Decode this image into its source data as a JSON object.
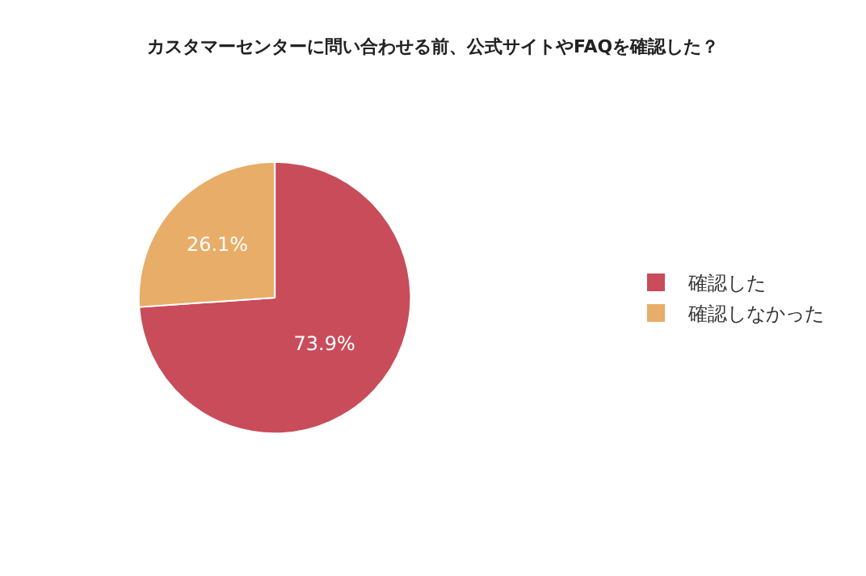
{
  "chart_data": {
    "type": "pie",
    "title": "カスタマーセンターに問い合わせる前、公式サイトやFAQを確認した？",
    "categories": [
      "確認した",
      "確認しなかった"
    ],
    "values": [
      73.9,
      26.1
    ],
    "colors": [
      "#c94c5a",
      "#e8ad68"
    ],
    "value_labels": [
      "73.9%",
      "26.1%"
    ],
    "legend": "right"
  }
}
